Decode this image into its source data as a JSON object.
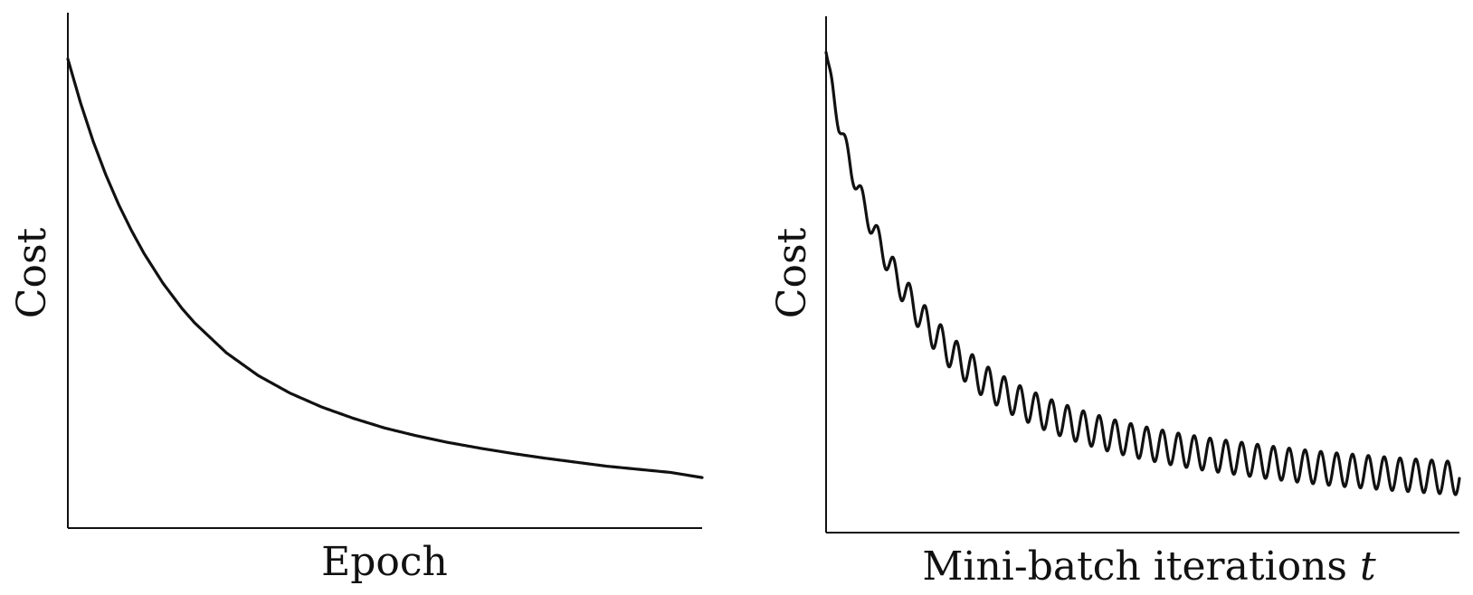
{
  "chart_data": [
    {
      "type": "line",
      "xlabel": "Epoch",
      "ylabel": "Cost",
      "xticks": [],
      "yticks": [],
      "grid": false,
      "legend": "none",
      "xlim": [
        0,
        100
      ],
      "ylim": [
        0,
        100
      ],
      "series": [
        {
          "color": "#111111",
          "x": [
            0,
            2,
            4,
            6,
            8,
            10,
            12,
            15,
            18,
            20,
            25,
            30,
            35,
            40,
            45,
            50,
            55,
            60,
            65,
            70,
            75,
            80,
            85,
            90,
            95,
            100
          ],
          "y": [
            91.0,
            82.5,
            75.0,
            68.5,
            62.8,
            57.8,
            53.3,
            47.5,
            42.6,
            39.8,
            34.0,
            29.6,
            26.2,
            23.5,
            21.3,
            19.4,
            17.9,
            16.6,
            15.5,
            14.5,
            13.6,
            12.8,
            12.0,
            11.4,
            10.8,
            9.8
          ]
        }
      ]
    },
    {
      "type": "line",
      "xlabel": "Mini-batch iterations",
      "xlabel_variable": "t",
      "ylabel": "Cost",
      "xticks": [],
      "yticks": [],
      "grid": false,
      "legend": "none",
      "xlim": [
        0,
        100
      ],
      "ylim": [
        0,
        100
      ],
      "oscillation": {
        "cycles": 40,
        "amplitude": 3.2
      },
      "series": [
        {
          "color": "#111111",
          "x": [
            0,
            1,
            2,
            4,
            6,
            8,
            10,
            12,
            15,
            18,
            20,
            25,
            30,
            35,
            40,
            45,
            50,
            55,
            60,
            65,
            70,
            75,
            80,
            85,
            90,
            95,
            100
          ],
          "y": [
            93.0,
            86.0,
            79.5,
            70.5,
            63.2,
            57.2,
            52.0,
            47.5,
            41.8,
            37.2,
            34.5,
            29.3,
            25.6,
            22.8,
            20.6,
            18.8,
            17.4,
            16.2,
            15.2,
            14.4,
            13.6,
            12.9,
            12.3,
            11.8,
            11.3,
            10.9,
            10.5
          ]
        }
      ]
    }
  ]
}
